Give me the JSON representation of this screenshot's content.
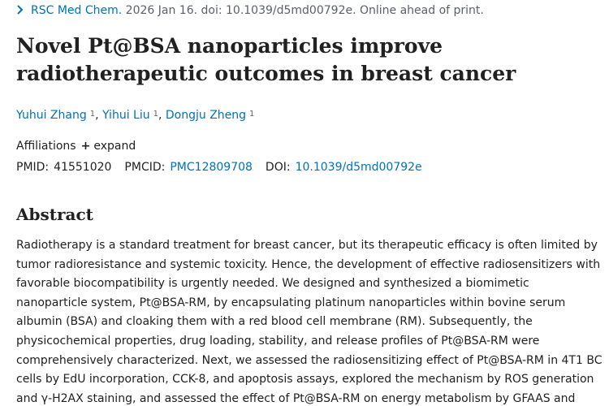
{
  "citation": {
    "journal": "RSC Med Chem.",
    "rest": "2026 Jan 16. doi: 10.1039/d5md00792e. Online ahead of print.",
    "chevron_icon": "chevron-right-icon"
  },
  "title_lines": [
    "Novel Pt@BSA nanoparticles improve",
    "radiotherapeutic outcomes in breast cancer"
  ],
  "authors": [
    {
      "name": "Yuhui Zhang",
      "aff": "1"
    },
    {
      "name": "Yihui Liu",
      "aff": "1"
    },
    {
      "name": "Dongju Zheng",
      "aff": "1"
    }
  ],
  "affiliations": {
    "label": "Affiliations",
    "plus": "+",
    "expand": "expand"
  },
  "ids": {
    "pmid_label": "PMID:",
    "pmid": "41551020",
    "pmcid_label": "PMCID:",
    "pmcid": "PMC12809708",
    "doi_label": "DOI:",
    "doi": "10.1039/d5md00792e"
  },
  "abstract": {
    "heading": "Abstract",
    "lines": [
      "Radiotherapy is a standard treatment for breast cancer, but its therapeutic efficacy is often limited by",
      "tumor radioresistance and systemic toxicity. Hence, the development of effective radiosensitizers with",
      "favorable biocompatibility is urgently needed. We designed and synthesized a biomimetic",
      "nanoparticle system, Pt@BSA-RM, by encapsulating platinum nanoparticles within bovine serum",
      "albumin (BSA) and cloaking them with a red blood cell membrane (RM). Subsequently, the",
      "physicochemical properties, drug loading, stability, and release profiles of Pt@BSA-RM were",
      "comprehensively characterized. Next, we assessed the radiosensitizing effect of Pt@BSA-RM in 4T1 BC",
      "cells by EdU incorporation, CCK-8, and apoptosis assays, explored the mechanism by ROS generation",
      "and γ-H2AX staining, and assessed the effect of Pt@BSA-RM on energy metabolism by GFAAS and"
    ]
  },
  "colors": {
    "link": "#0071bc",
    "text": "#212121",
    "muted": "#5b616b"
  }
}
